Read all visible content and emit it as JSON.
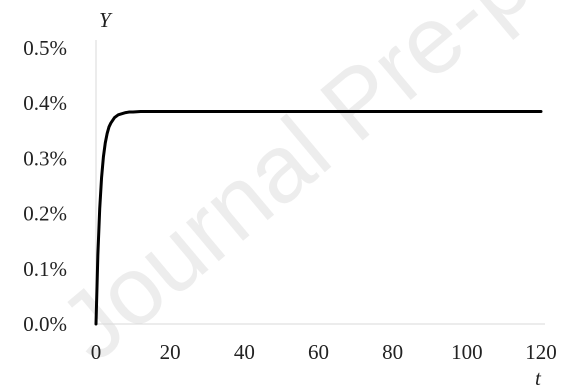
{
  "chart_data": {
    "type": "line",
    "xlabel": "t",
    "ylabel": "Y",
    "xlim": [
      0,
      120
    ],
    "ylim": [
      0,
      0.005
    ],
    "x_ticks": [
      0,
      20,
      40,
      60,
      80,
      100,
      120
    ],
    "x_tick_labels": [
      "0",
      "20",
      "40",
      "60",
      "80",
      "100",
      "120"
    ],
    "y_ticks": [
      0,
      0.001,
      0.002,
      0.003,
      0.004,
      0.005
    ],
    "y_tick_labels": [
      "0.0%",
      "0.1%",
      "0.2%",
      "0.3%",
      "0.4%",
      "0.5%"
    ],
    "grid": false,
    "series": [
      {
        "color": "#000000",
        "x": [
          0,
          0.5,
          1,
          1.5,
          2,
          2.5,
          3,
          3.5,
          4,
          5,
          6,
          7,
          8,
          9,
          10,
          12,
          15,
          20,
          30,
          40,
          60,
          80,
          100,
          120
        ],
        "y": [
          0,
          0.00125,
          0.00209,
          0.00265,
          0.00303,
          0.00328,
          0.00345,
          0.00357,
          0.00364,
          0.00374,
          0.00379,
          0.00381,
          0.00383,
          0.00384,
          0.00384,
          0.00385,
          0.00385,
          0.00385,
          0.00385,
          0.00385,
          0.00385,
          0.00385,
          0.00385,
          0.00385
        ]
      }
    ]
  },
  "watermark_text": "Journal Pre-p"
}
